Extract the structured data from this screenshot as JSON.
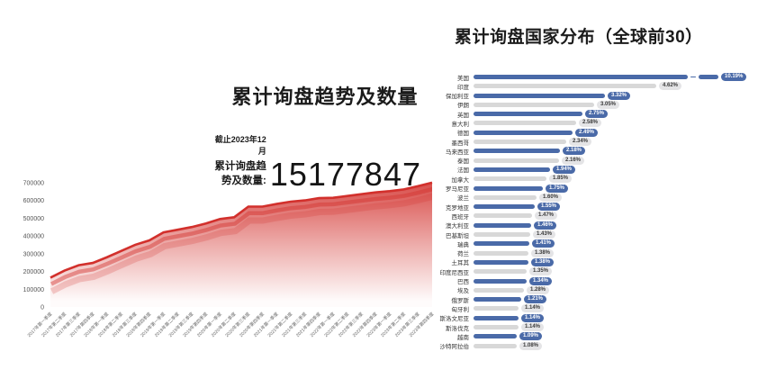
{
  "left_chart": {
    "title": "累计询盘趋势及数量",
    "as_of_label": "截止2023年12月",
    "total_label": "累计询盘趋势及数量:",
    "total_value": "15177847",
    "line_color": "#d2302c",
    "tick_color": "#555555"
  },
  "right_chart": {
    "title": "累计询盘国家分布（全球前30）",
    "bar_color": "#4a6aa8",
    "alt_bar_color": "#d8d8d8",
    "unit": "%"
  },
  "chart_data": [
    {
      "type": "area",
      "title": "累计询盘趋势及数量",
      "annotation": "截止2023年12月 累计询盘趋势及数量: 15177847",
      "x": [
        "2017年第一季度",
        "2017年第二季度",
        "2017年第三季度",
        "2017年第四季度",
        "2018年第一季度",
        "2018年第二季度",
        "2018年第三季度",
        "2018年第四季度",
        "2019年第一季度",
        "2019年第二季度",
        "2019年第三季度",
        "2019年第四季度",
        "2020年第一季度",
        "2020年第二季度",
        "2020年第三季度",
        "2020年第四季度",
        "2021年第一季度",
        "2021年第二季度",
        "2021年第三季度",
        "2021年第四季度",
        "2022年第一季度",
        "2022年第二季度",
        "2022年第三季度",
        "2022年第四季度",
        "2023年第一季度",
        "2023年第二季度",
        "2023年第三季度",
        "2023年第四季度"
      ],
      "values": [
        165000,
        205000,
        235000,
        248000,
        280000,
        315000,
        350000,
        375000,
        420000,
        435000,
        450000,
        470000,
        495000,
        505000,
        565000,
        565000,
        580000,
        593000,
        600000,
        613000,
        615000,
        625000,
        635000,
        645000,
        652000,
        662000,
        680000,
        700000
      ],
      "y_ticks": [
        0,
        100000,
        200000,
        300000,
        400000,
        500000,
        600000,
        700000
      ],
      "ylim": [
        0,
        750000
      ],
      "grid": false,
      "legend": false
    },
    {
      "type": "bar",
      "orientation": "horizontal",
      "title": "累计询盘国家分布（全球前30）",
      "categories": [
        "美国",
        "印度",
        "保加利亚",
        "伊朗",
        "英国",
        "意大利",
        "德国",
        "墨西哥",
        "马来西亚",
        "泰国",
        "法国",
        "加拿大",
        "罗马尼亚",
        "波兰",
        "克罗地亚",
        "西班牙",
        "澳大利亚",
        "巴基斯坦",
        "瑞典",
        "荷兰",
        "土耳其",
        "印度尼西亚",
        "巴西",
        "埃及",
        "俄罗斯",
        "匈牙利",
        "斯洛文尼亚",
        "斯洛伐克",
        "越南",
        "沙特阿拉伯"
      ],
      "values": [
        10.19,
        4.62,
        3.32,
        3.05,
        2.75,
        2.58,
        2.49,
        2.34,
        2.18,
        2.16,
        1.94,
        1.85,
        1.75,
        1.6,
        1.55,
        1.47,
        1.46,
        1.43,
        1.41,
        1.38,
        1.38,
        1.35,
        1.34,
        1.28,
        1.21,
        1.14,
        1.14,
        1.14,
        1.09,
        1.08
      ],
      "unit": "%",
      "axis_break_rows": [
        0
      ],
      "legend": false
    }
  ]
}
